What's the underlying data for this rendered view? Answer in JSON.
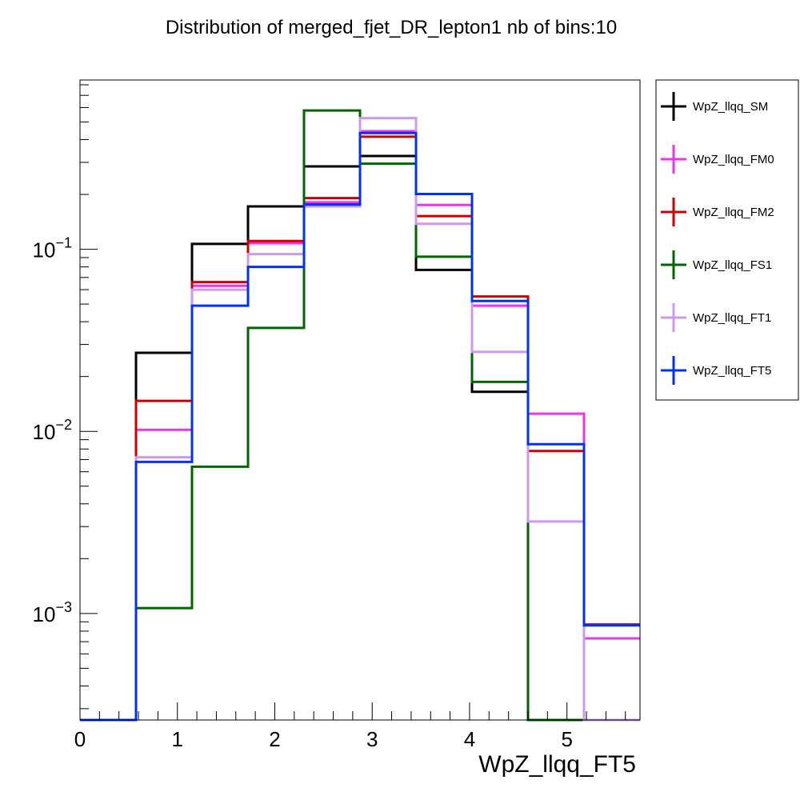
{
  "chart_data": {
    "type": "line",
    "title": "Distribution of merged_fjet_DR_lepton1 nb of bins:10",
    "xlabel": "WpZ_llqq_FT5",
    "ylabel": "",
    "x_scale": "linear",
    "y_scale": "log",
    "xlim": [
      0,
      5.75
    ],
    "ylim": [
      0.00026,
      0.85
    ],
    "grid": false,
    "legend_position": "outside-right",
    "bin_edges": [
      0,
      0.575,
      1.15,
      1.725,
      2.3,
      2.875,
      3.45,
      4.025,
      4.6,
      5.175,
      5.75
    ],
    "x_ticks": [
      {
        "value": 0,
        "label": "0"
      },
      {
        "value": 1,
        "label": "1"
      },
      {
        "value": 2,
        "label": "2"
      },
      {
        "value": 3,
        "label": "3"
      },
      {
        "value": 4,
        "label": "4"
      },
      {
        "value": 5,
        "label": "5"
      }
    ],
    "y_ticks": [
      {
        "value": 0.001,
        "base": "10",
        "exp": "−3"
      },
      {
        "value": 0.01,
        "base": "10",
        "exp": "−2"
      },
      {
        "value": 0.1,
        "base": "10",
        "exp": "−1"
      }
    ],
    "series": [
      {
        "name": "WpZ_llqq_SM",
        "color": "#000000",
        "values": [
          0,
          0.027,
          0.107,
          0.172,
          0.285,
          0.325,
          0.077,
          0.0165,
          0,
          0
        ]
      },
      {
        "name": "WpZ_llqq_FM0",
        "color": "#ee33ee",
        "values": [
          0,
          0.0102,
          0.063,
          0.108,
          0.181,
          0.445,
          0.175,
          0.049,
          0.0125,
          0.00073
        ]
      },
      {
        "name": "WpZ_llqq_FM2",
        "color": "#cc0000",
        "values": [
          0,
          0.0147,
          0.066,
          0.111,
          0.191,
          0.415,
          0.152,
          0.055,
          0.0078,
          0.00087
        ]
      },
      {
        "name": "WpZ_llqq_FS1",
        "color": "#006600",
        "values": [
          0,
          0.00107,
          0.0064,
          0.037,
          0.578,
          0.295,
          0.091,
          0.0187,
          0,
          0
        ]
      },
      {
        "name": "WpZ_llqq_FT1",
        "color": "#cc99ee",
        "values": [
          0,
          0.0072,
          0.06,
          0.094,
          0.172,
          0.525,
          0.138,
          0.0273,
          0.0032,
          0
        ]
      },
      {
        "name": "WpZ_llqq_FT5",
        "color": "#0033ee",
        "values": [
          0,
          0.0068,
          0.049,
          0.08,
          0.176,
          0.435,
          0.201,
          0.052,
          0.0085,
          0.00086
        ]
      }
    ]
  }
}
